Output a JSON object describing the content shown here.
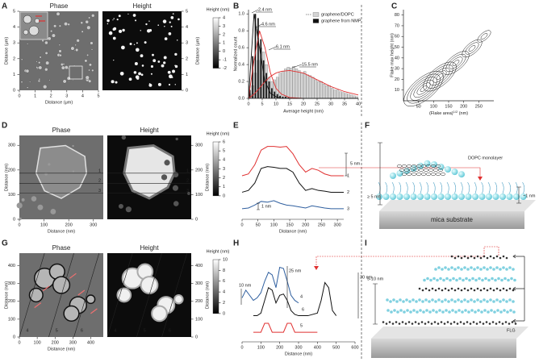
{
  "panel_labels": [
    "A",
    "B",
    "C",
    "D",
    "E",
    "F",
    "G",
    "H",
    "I"
  ],
  "afm": [
    {
      "titles": [
        "Phase",
        "Height"
      ],
      "xlabel": "Distance (μm)",
      "ylabel": "Distance (μm)",
      "xlim": [
        0,
        5
      ],
      "ylim": [
        0,
        5
      ],
      "xticks": [
        0,
        1,
        2,
        3,
        4,
        5
      ],
      "yticks": [
        0,
        1,
        2,
        3,
        4,
        5
      ],
      "colorbar_label": "Height (nm)",
      "colorbar_lim": [
        -2,
        4
      ],
      "colorbar_ticks": [
        -2,
        -1,
        0,
        1,
        2,
        3,
        4
      ]
    },
    {
      "titles": [
        "Phase",
        "Height"
      ],
      "xlabel": "Distance (nm)",
      "ylabel": "Distance (nm)",
      "xlim": [
        0,
        340
      ],
      "ylim": [
        0,
        340
      ],
      "xticks": [
        0,
        100,
        200,
        300
      ],
      "yticks": [
        0,
        100,
        200,
        300
      ],
      "colorbar_label": "Height (nm)",
      "colorbar_lim": [
        0,
        6
      ],
      "colorbar_ticks": [
        0,
        1,
        2,
        3,
        4,
        5,
        6
      ]
    },
    {
      "titles": [
        "Phase",
        "Height"
      ],
      "xlabel": "Distance (nm)",
      "ylabel": "Distance (nm)",
      "xlim": [
        0,
        470
      ],
      "ylim": [
        0,
        470
      ],
      "xticks": [
        0,
        100,
        200,
        300,
        400
      ],
      "yticks": [
        0,
        100,
        200,
        300,
        400
      ],
      "colorbar_label": "Height (nm)",
      "colorbar_lim": [
        0,
        10
      ],
      "colorbar_ticks": [
        0,
        2,
        4,
        6,
        8,
        10
      ]
    }
  ],
  "chart_data": [
    {
      "type": "histogram",
      "xlabel": "Average height (nm)",
      "ylabel": "Normalized count",
      "bins": [
        0,
        1,
        2,
        3,
        4,
        5,
        6,
        7,
        8,
        9,
        10,
        11,
        12,
        13,
        14,
        15,
        16,
        17,
        18,
        19,
        20,
        21,
        22,
        23,
        24,
        25,
        26,
        27,
        28,
        29,
        30,
        31,
        32,
        33,
        34,
        35,
        36,
        37,
        38,
        39,
        40
      ],
      "series": [
        {
          "name": "graphene/DOPC",
          "color": "#d4d4d4",
          "values": [
            0.05,
            0.15,
            0.3,
            0.45,
            0.6,
            0.55,
            0.4,
            0.25,
            0.2,
            0.22,
            0.25,
            0.3,
            0.32,
            0.35,
            0.37,
            0.36,
            0.38,
            0.35,
            0.33,
            0.3,
            0.32,
            0.28,
            0.27,
            0.25,
            0.22,
            0.2,
            0.2,
            0.17,
            0.15,
            0.15,
            0.12,
            0.1,
            0.1,
            0.08,
            0.07,
            0.06,
            0.05,
            0.04,
            0.03,
            0.02
          ]
        },
        {
          "name": "graphene from NMP",
          "color": "#111111",
          "values": [
            0.1,
            0.5,
            1.0,
            0.95,
            0.7,
            0.45,
            0.3,
            0.2,
            0.12,
            0.08,
            0.05,
            0.03,
            0.02,
            0.02,
            0.01,
            0,
            0,
            0,
            0,
            0,
            0,
            0,
            0,
            0,
            0,
            0,
            0,
            0,
            0,
            0,
            0,
            0,
            0,
            0,
            0,
            0,
            0,
            0,
            0,
            0
          ]
        }
      ],
      "fits": {
        "x": [
          0,
          2,
          4,
          6,
          8,
          10,
          12,
          15,
          20,
          25,
          30,
          35,
          40
        ],
        "series": [
          {
            "color": "#e03030",
            "values": [
              0,
              0.45,
              0.8,
              0.6,
              0.3,
              0.12,
              0.05,
              0.01,
              0,
              0,
              0,
              0,
              0
            ]
          },
          {
            "color": "#e03030",
            "values": [
              0,
              0.05,
              0.12,
              0.2,
              0.26,
              0.3,
              0.32,
              0.33,
              0.3,
              0.22,
              0.14,
              0.08,
              0.04
            ]
          },
          {
            "color": "#111111",
            "values": [
              0,
              1.0,
              0.6,
              0.2,
              0.06,
              0.02,
              0,
              0,
              0,
              0,
              0,
              0,
              0
            ]
          }
        ]
      },
      "annotations": [
        "2.4 nm",
        "4.6 nm",
        "6.1 nm",
        "15.5 nm"
      ],
      "xlim": [
        0,
        40
      ],
      "ylim": [
        0,
        1.05
      ],
      "xticks": [
        0,
        5,
        10,
        15,
        20,
        25,
        30,
        35,
        40
      ],
      "yticks": [
        {
          "value": 0,
          "label": "0.0"
        },
        0.2,
        0.4,
        0.6,
        0.8,
        {
          "value": 1,
          "label": "1.0"
        }
      ]
    },
    {
      "type": "contour",
      "xlabel": [
        "(Flake area)",
        "1/2",
        " (nm)"
      ],
      "ylabel": "Flake max height (nm)",
      "xlim": [
        0,
        300
      ],
      "ylim": [
        0,
        85
      ],
      "xticks": [
        50,
        100,
        150,
        200,
        250
      ],
      "yticks": [
        10,
        20,
        30,
        40,
        50,
        60,
        70,
        80
      ]
    },
    {
      "type": "line",
      "xlabel": "Distance (nm)",
      "x": [
        0,
        20,
        40,
        60,
        80,
        100,
        120,
        140,
        160,
        180,
        200,
        220,
        240,
        260,
        280,
        300,
        320
      ],
      "series": [
        {
          "name": "1",
          "color": "#e03030",
          "values": [
            11,
            11.5,
            14,
            18,
            19,
            19,
            18.8,
            19,
            17,
            14,
            12,
            13,
            12.5,
            11.5,
            11,
            11,
            11
          ]
        },
        {
          "name": "2",
          "color": "#111111",
          "values": [
            6.5,
            7,
            9,
            13,
            13.5,
            13.3,
            13,
            13,
            12,
            9,
            7,
            7.5,
            7,
            6.8,
            6.5,
            6.5,
            6.5
          ]
        },
        {
          "name": "3",
          "color": "#2f5f9f",
          "values": [
            2,
            2.2,
            3,
            4,
            3.8,
            4.2,
            3.5,
            3,
            2.8,
            2.5,
            2.2,
            2.8,
            2.5,
            2.2,
            2,
            2,
            2
          ]
        }
      ],
      "annotations": [
        "5 nm",
        "1 nm"
      ],
      "xlim": [
        0,
        320
      ],
      "ylim": [
        0,
        22
      ],
      "xticks": [
        0,
        50,
        100,
        150,
        200,
        250,
        300
      ]
    },
    {
      "type": "line",
      "xlabel": "Distance (nm)",
      "x": [
        0,
        20,
        40,
        60,
        80,
        100,
        120,
        140,
        160,
        180,
        200,
        220,
        240,
        260,
        280,
        300,
        350,
        400,
        420,
        440,
        460,
        480,
        500,
        550,
        600
      ],
      "series": [
        {
          "name": "4",
          "color": "#2f5f9f",
          "values": [
            32,
            38,
            34,
            30,
            32,
            36,
            45,
            52,
            50,
            40,
            56,
            55,
            45,
            34,
            30,
            28,
            null,
            null,
            null,
            null,
            null,
            null,
            null,
            null,
            null
          ]
        },
        {
          "name": "5",
          "color": "#111111",
          "values": [
            null,
            null,
            null,
            18,
            18,
            20,
            30,
            40,
            38,
            28,
            34,
            35,
            30,
            22,
            19,
            18,
            18,
            20,
            30,
            44,
            40,
            22,
            18,
            null,
            null
          ]
        },
        {
          "name": "6",
          "color": "#e03030",
          "values": [
            null,
            null,
            null,
            5,
            5,
            5,
            12,
            12,
            5,
            5,
            5,
            5,
            12,
            12,
            5,
            5,
            5,
            5,
            null,
            null,
            null,
            null,
            null,
            null,
            null
          ]
        }
      ],
      "annotations": [
        "10 nm",
        "25 nm",
        "30 nm"
      ],
      "xlim": [
        0,
        600
      ],
      "ylim": [
        0,
        62
      ],
      "xticks": [
        0,
        100,
        200,
        300,
        400,
        500,
        600
      ]
    }
  ],
  "diagram_f": {
    "monolayer": "DOPC monolayer",
    "thick": "≥ 5 nm",
    "thin": "~1 nm",
    "substrate": "mica substrate"
  },
  "diagram_i": {
    "thick": "5-10 nm",
    "flg": "FLG"
  }
}
